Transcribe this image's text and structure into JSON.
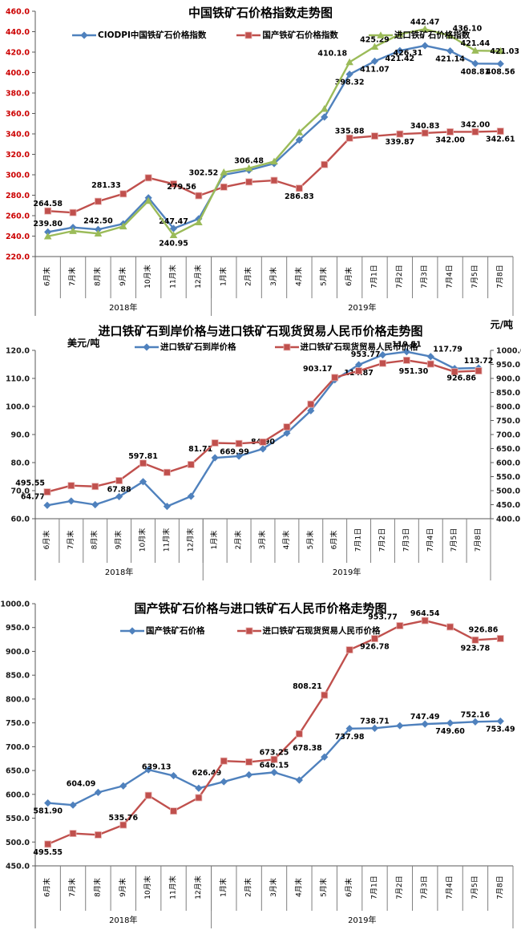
{
  "page": {
    "background": "#ffffff"
  },
  "chart_data": [
    {
      "type": "line",
      "title": "中国铁矿石价格指数走势图",
      "y_axis": {
        "min": 220,
        "max": 460,
        "step": 20,
        "tick_color": "#cc0000"
      },
      "x_axis": {
        "categories": [
          "6月末",
          "7月末",
          "8月末",
          "9月末",
          "10月末",
          "11月末",
          "12月末",
          "1月末",
          "2月末",
          "3月末",
          "4月末",
          "5月末",
          "6月末",
          "7月1日",
          "7月2日",
          "7月3日",
          "7月4日",
          "7月5日",
          "7月8日"
        ],
        "groups": [
          {
            "label": "2018年",
            "span": 7
          },
          {
            "label": "2019年",
            "span": 12
          }
        ]
      },
      "series": [
        {
          "name": "CIODPI中国铁矿石价格指数",
          "color": "#4F81BD",
          "marker": "diamond",
          "values": [
            244.0,
            248.5,
            246.5,
            252.0,
            277.5,
            247.47,
            257.0,
            300.0,
            304.5,
            311.0,
            334.0,
            356.5,
            398.32,
            411.07,
            421.42,
            426.31,
            421.14,
            408.81,
            408.56
          ],
          "labels": [
            [
              5,
              "247.47",
              "a"
            ],
            [
              12,
              "398.32",
              "b"
            ],
            [
              13,
              "411.07",
              "b"
            ],
            [
              14,
              "421.42",
              "b"
            ],
            [
              15,
              "426.31",
              "bl"
            ],
            [
              16,
              "421.14",
              "b"
            ],
            [
              17,
              "408.81",
              "b"
            ],
            [
              18,
              "408.56",
              "b"
            ]
          ]
        },
        {
          "name": "国产铁矿石价格指数",
          "color": "#C0504D",
          "marker": "square",
          "values": [
            264.58,
            263.0,
            274.0,
            281.33,
            297.0,
            291.0,
            279.56,
            288.0,
            293.0,
            294.5,
            286.83,
            310.0,
            335.88,
            337.9,
            339.87,
            340.83,
            342.0,
            342.0,
            342.61
          ],
          "labels": [
            [
              0,
              "264.58",
              "a"
            ],
            [
              3,
              "281.33",
              "al"
            ],
            [
              6,
              "279.56",
              "al"
            ],
            [
              10,
              "286.83",
              "b"
            ],
            [
              12,
              "335.88",
              "a"
            ],
            [
              14,
              "339.87",
              "b"
            ],
            [
              15,
              "340.83",
              "a"
            ],
            [
              16,
              "342.00",
              "b"
            ],
            [
              17,
              "342.00",
              "a"
            ],
            [
              18,
              "342.61",
              "b"
            ]
          ]
        },
        {
          "name": "进口铁矿石价格指数",
          "color": "#9BBB59",
          "marker": "triangle",
          "values": [
            239.8,
            245.0,
            242.5,
            249.5,
            274.5,
            240.95,
            253.5,
            302.52,
            306.48,
            313.0,
            341.5,
            364.5,
            410.18,
            425.29,
            437.5,
            442.47,
            436.1,
            421.44,
            421.03
          ],
          "labels": [
            [
              0,
              "239.80",
              "A"
            ],
            [
              2,
              "242.50",
              "A"
            ],
            [
              5,
              "240.95",
              "b"
            ],
            [
              7,
              "302.52",
              "l"
            ],
            [
              8,
              "306.48",
              "a"
            ],
            [
              12,
              "410.18",
              "al"
            ],
            [
              13,
              "425.29",
              "a"
            ],
            [
              15,
              "442.47",
              "a"
            ],
            [
              16,
              "436.10",
              "ar"
            ],
            [
              17,
              "421.44",
              "a"
            ],
            [
              18,
              "421.03",
              "e"
            ]
          ]
        }
      ]
    },
    {
      "type": "line",
      "title": "进口铁矿石到岸价格与进口铁矿石现货贸易人民币价格走势图",
      "y_axis": {
        "min": 60,
        "max": 120,
        "step": 10,
        "tick_color": "#1a1a1a",
        "unit": "美元/吨"
      },
      "y2_axis": {
        "min": 400,
        "max": 1000,
        "step": 50,
        "tick_color": "#1a1a1a",
        "unit": "元/吨"
      },
      "x_axis": {
        "categories": [
          "6月末",
          "7月末",
          "8月末",
          "9月末",
          "10月末",
          "11月末",
          "12月末",
          "1月末",
          "2月末",
          "3月末",
          "4月末",
          "5月末",
          "6月末",
          "7月1日",
          "7月2日",
          "7月3日",
          "7月4日",
          "7月5日",
          "7月8日"
        ],
        "groups": [
          {
            "label": "2018年",
            "span": 7
          },
          {
            "label": "2019年",
            "span": 12
          }
        ]
      },
      "series": [
        {
          "name": "进口铁矿石到岸价格",
          "color": "#4F81BD",
          "marker": "diamond",
          "axis": "left",
          "values": [
            64.77,
            66.3,
            65.0,
            67.88,
            73.2,
            64.4,
            68.0,
            81.71,
            82.3,
            84.9,
            90.5,
            98.5,
            109.5,
            114.87,
            118.4,
            119.51,
            117.79,
            113.5,
            113.72
          ],
          "labels": [
            [
              0,
              "64.77",
              "al"
            ],
            [
              3,
              "67.88",
              "a"
            ],
            [
              7,
              "81.71",
              "al"
            ],
            [
              9,
              "84.90",
              "a"
            ],
            [
              13,
              "114.87",
              "b"
            ],
            [
              15,
              "119.51",
              "a"
            ],
            [
              16,
              "117.79",
              "ar"
            ],
            [
              18,
              "113.72",
              "a"
            ]
          ]
        },
        {
          "name": "进口铁矿石现货贸易人民币价格",
          "color": "#C0504D",
          "marker": "square",
          "axis": "right",
          "values": [
            495.55,
            518.0,
            515.0,
            535.76,
            597.81,
            565.0,
            593.0,
            669.99,
            668.0,
            673.25,
            727.0,
            808.21,
            903.17,
            926.78,
            953.77,
            964.54,
            951.3,
            923.78,
            926.86
          ],
          "labels": [
            [
              0,
              "495.55",
              "al"
            ],
            [
              4,
              "597.81",
              "a"
            ],
            [
              7,
              "669.99",
              "br"
            ],
            [
              12,
              "903.17",
              "al"
            ],
            [
              14,
              "953.77",
              "al"
            ],
            [
              16,
              "951.30",
              "bl"
            ],
            [
              18,
              "926.86",
              "bl"
            ]
          ]
        }
      ]
    },
    {
      "type": "line",
      "title": "国产铁矿石价格与进口铁矿石人民币价格走势图",
      "y_axis": {
        "min": 450,
        "max": 1000,
        "step": 50,
        "tick_color": "#1a1a1a"
      },
      "x_axis": {
        "categories": [
          "6月末",
          "7月末",
          "8月末",
          "9月末",
          "10月末",
          "11月末",
          "12月末",
          "1月末",
          "2月末",
          "3月末",
          "4月末",
          "5月末",
          "6月末",
          "7月1日",
          "7月2日",
          "7月3日",
          "7月4日",
          "7月5日",
          "7月8日"
        ],
        "groups": [
          {
            "label": "2018年",
            "span": 7
          },
          {
            "label": "2019年",
            "span": 12
          }
        ]
      },
      "series": [
        {
          "name": "国产铁矿石价格",
          "color": "#4F81BD",
          "marker": "diamond",
          "values": [
            581.9,
            577.5,
            604.09,
            617.8,
            651.6,
            639.13,
            612.8,
            626.49,
            641.0,
            646.15,
            630.0,
            678.38,
            737.98,
            738.71,
            744.0,
            747.49,
            749.6,
            752.16,
            753.49
          ],
          "labels": [
            [
              0,
              "581.90",
              "b"
            ],
            [
              2,
              "604.09",
              "al"
            ],
            [
              5,
              "639.13",
              "al"
            ],
            [
              7,
              "626.49",
              "al"
            ],
            [
              9,
              "646.15",
              "a"
            ],
            [
              11,
              "678.38",
              "al"
            ],
            [
              12,
              "737.98",
              "b"
            ],
            [
              13,
              "738.71",
              "a"
            ],
            [
              15,
              "747.49",
              "a"
            ],
            [
              16,
              "749.60",
              "b"
            ],
            [
              17,
              "752.16",
              "a"
            ],
            [
              18,
              "753.49",
              "b"
            ]
          ]
        },
        {
          "name": "进口铁矿石现货贸易人民币价格",
          "color": "#C0504D",
          "marker": "square",
          "values": [
            495.55,
            518.0,
            515.0,
            535.76,
            597.81,
            565.0,
            593.0,
            669.99,
            668.0,
            673.25,
            727.0,
            808.21,
            903.17,
            926.78,
            953.77,
            964.54,
            951.3,
            923.78,
            926.86
          ],
          "labels": [
            [
              0,
              "495.55",
              "b"
            ],
            [
              3,
              "535.76",
              "a"
            ],
            [
              9,
              "673.25",
              "a"
            ],
            [
              11,
              "808.21",
              "al"
            ],
            [
              13,
              "926.78",
              "b"
            ],
            [
              14,
              "953.77",
              "al"
            ],
            [
              15,
              "964.54",
              "a"
            ],
            [
              17,
              "923.78",
              "b"
            ],
            [
              18,
              "926.86",
              "al"
            ]
          ]
        }
      ]
    }
  ]
}
